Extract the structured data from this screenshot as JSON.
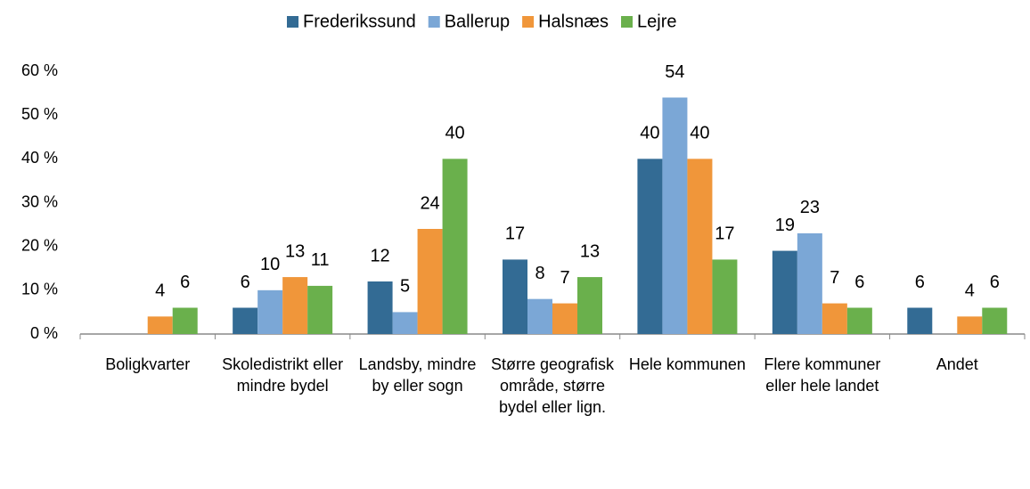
{
  "chart_data": {
    "type": "bar",
    "categories": [
      "Boligkvarter",
      "Skoledistrikt eller mindre bydel",
      "Landsby, mindre by eller sogn",
      "Større geografisk område, større bydel eller lign.",
      "Hele kommunen",
      "Flere kommuner eller hele landet",
      "Andet"
    ],
    "series": [
      {
        "name": "Frederikssund",
        "color": "#336b94",
        "values": [
          null,
          6,
          12,
          17,
          40,
          19,
          6
        ]
      },
      {
        "name": "Ballerup",
        "color": "#7ba7d6",
        "values": [
          null,
          10,
          5,
          8,
          54,
          23,
          null
        ]
      },
      {
        "name": "Halsnæs",
        "color": "#f0963a",
        "values": [
          4,
          13,
          24,
          7,
          40,
          7,
          4
        ]
      },
      {
        "name": "Lejre",
        "color": "#6ab04c",
        "values": [
          6,
          11,
          40,
          13,
          17,
          6,
          6
        ]
      }
    ],
    "ylim": [
      0,
      60
    ],
    "yticks": [
      {
        "value": 0,
        "label": "0 %"
      },
      {
        "value": 10,
        "label": "10 %"
      },
      {
        "value": 20,
        "label": "20 %"
      },
      {
        "value": 30,
        "label": "30 %"
      },
      {
        "value": 40,
        "label": "40 %"
      },
      {
        "value": 50,
        "label": "50 %"
      },
      {
        "value": 60,
        "label": "60 %"
      }
    ],
    "grid": false,
    "legend": "top"
  }
}
